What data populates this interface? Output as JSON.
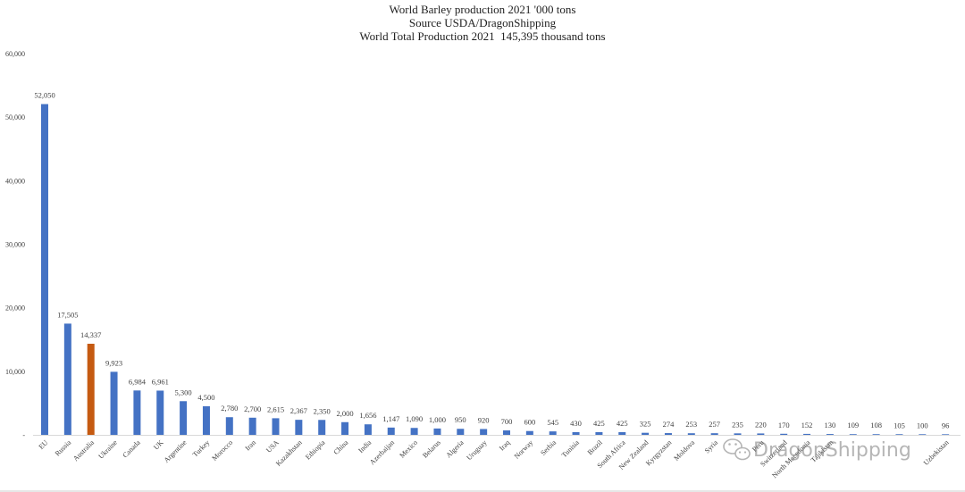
{
  "chart_data": {
    "type": "bar",
    "title": "World Barley production 2021 '000 tons",
    "subtitle": "Source USDA/DragonShipping",
    "note": "World Total Production 2021  145,395 thousand tons",
    "xlabel": "",
    "ylabel": "",
    "categories": [
      "EU",
      "Russia",
      "Australia",
      "Ukraine",
      "Canada",
      "UK",
      "Argentine",
      "Turkey",
      "Morocco",
      "Iran",
      "USA",
      "Kazakhstan",
      "Ethiopia",
      "China",
      "India",
      "Azerbaijan",
      "Mexico",
      "Belarus",
      "Algeria",
      "Uruguay",
      "Iraq",
      "Norway",
      "Serbia",
      "Tunisia",
      "Brazil",
      "South Africa",
      "New Zealand",
      "Kyrgyzstan",
      "Moldova",
      "Syria",
      "",
      "Peru",
      "Switzerland",
      "North Macedonia",
      "Tajikistan",
      "",
      "",
      "",
      "",
      "Uzbekistan"
    ],
    "values": [
      52050,
      17505,
      14337,
      9923,
      6984,
      6961,
      5300,
      4500,
      2780,
      2700,
      2615,
      2367,
      2350,
      2000,
      1656,
      1147,
      1090,
      1000,
      950,
      920,
      700,
      600,
      545,
      430,
      425,
      425,
      325,
      274,
      253,
      257,
      235,
      220,
      170,
      152,
      130,
      109,
      108,
      105,
      100,
      96
    ],
    "data_labels": [
      "52,050",
      "17,505",
      "14,337",
      "9,923",
      "6,984",
      "6,961",
      "5,300",
      "4,500",
      "2,780",
      "2,700",
      "2,615",
      "2,367",
      "2,350",
      "2,000",
      "1,656",
      "1,147",
      "1,090",
      "1,000",
      "950",
      "920",
      "700",
      "600",
      "545",
      "430",
      "425",
      "425",
      "325",
      "274",
      "253",
      "257",
      "235",
      "220",
      "170",
      "152",
      "130",
      "109",
      "108",
      "105",
      "100",
      "96"
    ],
    "ylim": [
      0,
      60000
    ],
    "yticks": [
      0,
      10000,
      20000,
      30000,
      40000,
      50000,
      60000
    ],
    "ytick_labels": [
      "-",
      "10,000",
      "20,000",
      "30,000",
      "40,000",
      "50,000",
      "60,000"
    ],
    "grid": false,
    "legend": "none",
    "highlight_category": "Australia",
    "colors": {
      "bar": "#4472C4",
      "highlight": "#C55A11",
      "axis": "#D9D9D9"
    }
  },
  "watermark": {
    "text": "DragonShipping",
    "icon": "wechat-icon"
  }
}
